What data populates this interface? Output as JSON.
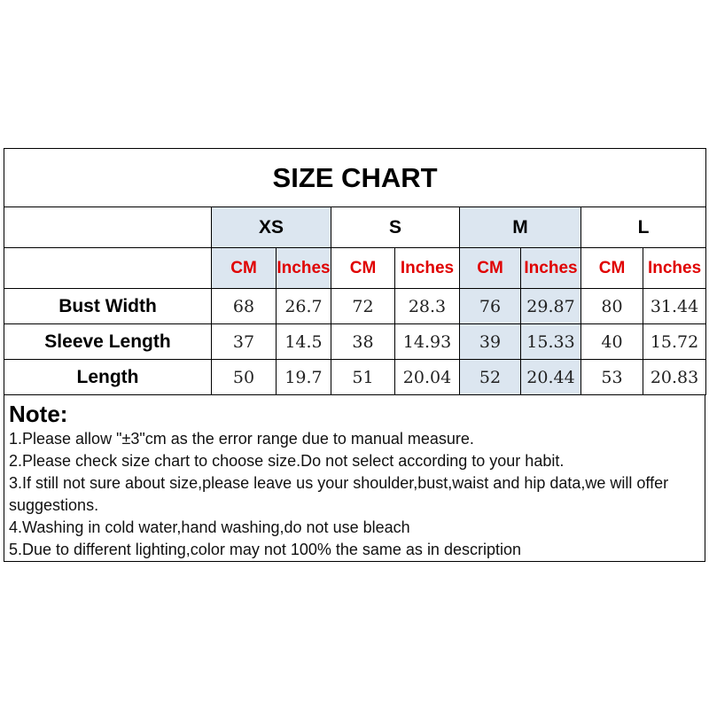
{
  "title": "SIZE CHART",
  "sizes": [
    "XS",
    "S",
    "M",
    "L"
  ],
  "units": {
    "cm": "CM",
    "inches": "Inches"
  },
  "shade_color": "#dce6f0",
  "unit_color": "#e00000",
  "rows": [
    {
      "label": "Bust Width",
      "values": [
        "68",
        "26.7",
        "72",
        "28.3",
        "76",
        "29.87",
        "80",
        "31.44"
      ]
    },
    {
      "label": "Sleeve Length",
      "values": [
        "37",
        "14.5",
        "38",
        "14.93",
        "39",
        "15.33",
        "40",
        "15.72"
      ]
    },
    {
      "label": "Length",
      "values": [
        "50",
        "19.7",
        "51",
        "20.04",
        "52",
        "20.44",
        "53",
        "20.83"
      ]
    }
  ],
  "notes": {
    "heading": "Note:",
    "lines": [
      "1.Please allow \"±3\"cm as the error range due to manual measure.",
      "2.Please check size chart to choose size.Do not select according to your habit.",
      "3.If still not sure about size,please leave us your shoulder,bust,waist and hip data,we will offer suggestions.",
      "4.Washing in cold water,hand washing,do not use bleach",
      "5.Due to different lighting,color may not 100% the same as in description"
    ]
  }
}
